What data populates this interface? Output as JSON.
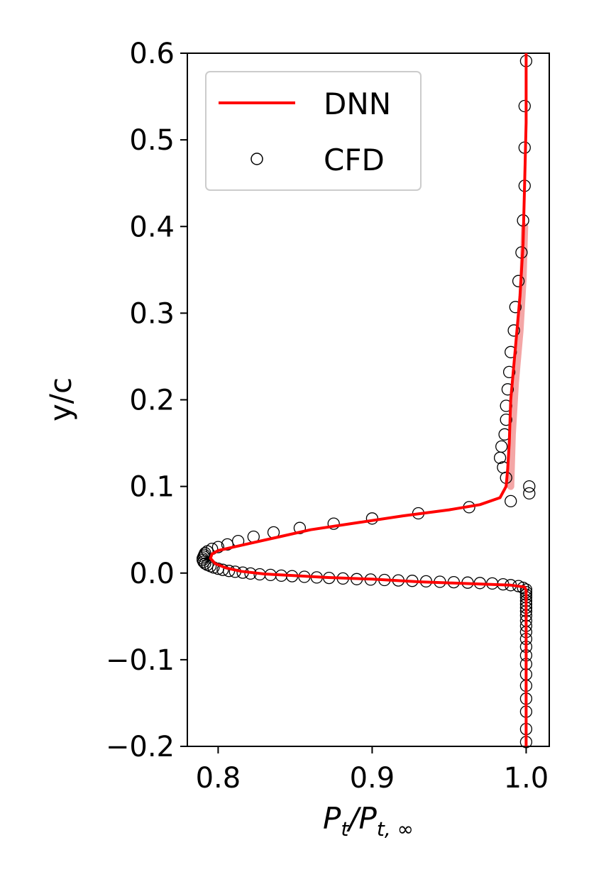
{
  "chart_data": {
    "type": "line",
    "xlabel": "P_t/P_t,∞",
    "xlabel_parts": {
      "main": "P",
      "sub1": "t",
      "slash": "/",
      "main2": "P",
      "sub2": "t, ∞"
    },
    "ylabel": "y/c",
    "xlim": [
      0.78,
      1.015
    ],
    "ylim": [
      -0.2,
      0.6
    ],
    "xticks": [
      "0.8",
      "0.9",
      "1.0"
    ],
    "xtick_values": [
      0.8,
      0.9,
      1.0
    ],
    "yticks": [
      "−0.2",
      "−0.1",
      "0.0",
      "0.1",
      "0.2",
      "0.3",
      "0.4",
      "0.5",
      "0.6"
    ],
    "ytick_values": [
      -0.2,
      -0.1,
      0.0,
      0.1,
      0.2,
      0.3,
      0.4,
      0.5,
      0.6
    ],
    "grid": false,
    "legend": {
      "position": "top-left",
      "entries": [
        "DNN",
        "CFD"
      ]
    },
    "colors": {
      "dnn": "#ff0000",
      "band": "#f08080",
      "cfd": "#000000"
    },
    "series": [
      {
        "name": "DNN",
        "style": "line",
        "points": [
          [
            1.0,
            -0.2
          ],
          [
            1.0,
            -0.1
          ],
          [
            1.0,
            -0.02
          ],
          [
            0.999,
            -0.016
          ],
          [
            0.99,
            -0.014
          ],
          [
            0.96,
            -0.012
          ],
          [
            0.93,
            -0.01
          ],
          [
            0.9,
            -0.007
          ],
          [
            0.87,
            -0.005
          ],
          [
            0.85,
            -0.003
          ],
          [
            0.83,
            -0.001
          ],
          [
            0.815,
            0.002
          ],
          [
            0.805,
            0.006
          ],
          [
            0.798,
            0.011
          ],
          [
            0.795,
            0.017
          ],
          [
            0.796,
            0.022
          ],
          [
            0.8,
            0.026
          ],
          [
            0.81,
            0.03
          ],
          [
            0.82,
            0.034
          ],
          [
            0.84,
            0.042
          ],
          [
            0.86,
            0.05
          ],
          [
            0.89,
            0.058
          ],
          [
            0.92,
            0.066
          ],
          [
            0.95,
            0.073
          ],
          [
            0.97,
            0.079
          ],
          [
            0.983,
            0.087
          ],
          [
            0.987,
            0.1
          ],
          [
            0.988,
            0.12
          ],
          [
            0.989,
            0.15
          ],
          [
            0.99,
            0.2
          ],
          [
            0.993,
            0.26
          ],
          [
            0.996,
            0.32
          ],
          [
            0.998,
            0.38
          ],
          [
            0.999,
            0.45
          ],
          [
            1.0,
            0.52
          ],
          [
            1.0,
            0.6
          ]
        ]
      },
      {
        "name": "DNN-uncertainty",
        "style": "band",
        "points": [
          [
            0.99,
            0.1
          ],
          [
            0.991,
            0.16
          ],
          [
            0.993,
            0.22
          ],
          [
            0.996,
            0.28
          ],
          [
            0.998,
            0.34
          ],
          [
            0.999,
            0.4
          ]
        ]
      },
      {
        "name": "CFD",
        "style": "scatter",
        "points": [
          [
            1.0,
            -0.195
          ],
          [
            1.0,
            -0.18
          ],
          [
            1.0,
            -0.16
          ],
          [
            1.0,
            -0.145
          ],
          [
            1.0,
            -0.13
          ],
          [
            1.0,
            -0.117
          ],
          [
            1.0,
            -0.105
          ],
          [
            1.0,
            -0.095
          ],
          [
            1.0,
            -0.085
          ],
          [
            1.0,
            -0.076
          ],
          [
            1.0,
            -0.068
          ],
          [
            1.0,
            -0.061
          ],
          [
            1.0,
            -0.055
          ],
          [
            1.0,
            -0.049
          ],
          [
            1.0,
            -0.044
          ],
          [
            1.0,
            -0.04
          ],
          [
            1.0,
            -0.036
          ],
          [
            1.0,
            -0.032
          ],
          [
            1.0,
            -0.028
          ],
          [
            1.0,
            -0.025
          ],
          [
            1.0,
            -0.022
          ],
          [
            1.0,
            -0.019
          ],
          [
            0.998,
            -0.017
          ],
          [
            0.995,
            -0.015
          ],
          [
            0.99,
            -0.014
          ],
          [
            0.985,
            -0.013
          ],
          [
            0.978,
            -0.012
          ],
          [
            0.97,
            -0.0115
          ],
          [
            0.962,
            -0.011
          ],
          [
            0.953,
            -0.0105
          ],
          [
            0.944,
            -0.01
          ],
          [
            0.935,
            -0.0095
          ],
          [
            0.926,
            -0.009
          ],
          [
            0.917,
            -0.0085
          ],
          [
            0.908,
            -0.008
          ],
          [
            0.899,
            -0.0075
          ],
          [
            0.89,
            -0.007
          ],
          [
            0.881,
            -0.0063
          ],
          [
            0.872,
            -0.0056
          ],
          [
            0.864,
            -0.005
          ],
          [
            0.856,
            -0.0043
          ],
          [
            0.848,
            -0.0036
          ],
          [
            0.841,
            -0.003
          ],
          [
            0.834,
            -0.0022
          ],
          [
            0.827,
            -0.0014
          ],
          [
            0.821,
            -0.0005
          ],
          [
            0.816,
            0.0005
          ],
          [
            0.811,
            0.0015
          ],
          [
            0.807,
            0.0025
          ],
          [
            0.803,
            0.0037
          ],
          [
            0.8,
            0.005
          ],
          [
            0.797,
            0.0065
          ],
          [
            0.795,
            0.008
          ],
          [
            0.793,
            0.0095
          ],
          [
            0.7915,
            0.011
          ],
          [
            0.7905,
            0.013
          ],
          [
            0.79,
            0.015
          ],
          [
            0.79,
            0.017
          ],
          [
            0.7905,
            0.019
          ],
          [
            0.791,
            0.021
          ],
          [
            0.7915,
            0.023
          ],
          [
            0.793,
            0.025
          ],
          [
            0.796,
            0.028
          ],
          [
            0.8,
            0.03
          ],
          [
            0.806,
            0.033
          ],
          [
            0.813,
            0.037
          ],
          [
            0.823,
            0.042
          ],
          [
            0.836,
            0.047
          ],
          [
            0.853,
            0.052
          ],
          [
            0.875,
            0.057
          ],
          [
            0.9,
            0.063
          ],
          [
            0.93,
            0.069
          ],
          [
            0.963,
            0.076
          ],
          [
            0.99,
            0.083
          ],
          [
            1.002,
            0.092
          ],
          [
            1.002,
            0.1
          ],
          [
            0.987,
            0.11
          ],
          [
            0.985,
            0.122
          ],
          [
            0.983,
            0.133
          ],
          [
            0.984,
            0.146
          ],
          [
            0.986,
            0.16
          ],
          [
            0.987,
            0.177
          ],
          [
            0.987,
            0.193
          ],
          [
            0.988,
            0.212
          ],
          [
            0.989,
            0.232
          ],
          [
            0.99,
            0.255
          ],
          [
            0.992,
            0.28
          ],
          [
            0.993,
            0.307
          ],
          [
            0.995,
            0.337
          ],
          [
            0.997,
            0.37
          ],
          [
            0.998,
            0.407
          ],
          [
            0.999,
            0.447
          ],
          [
            0.999,
            0.491
          ],
          [
            0.999,
            0.539
          ],
          [
            1.0,
            0.591
          ]
        ]
      }
    ]
  }
}
